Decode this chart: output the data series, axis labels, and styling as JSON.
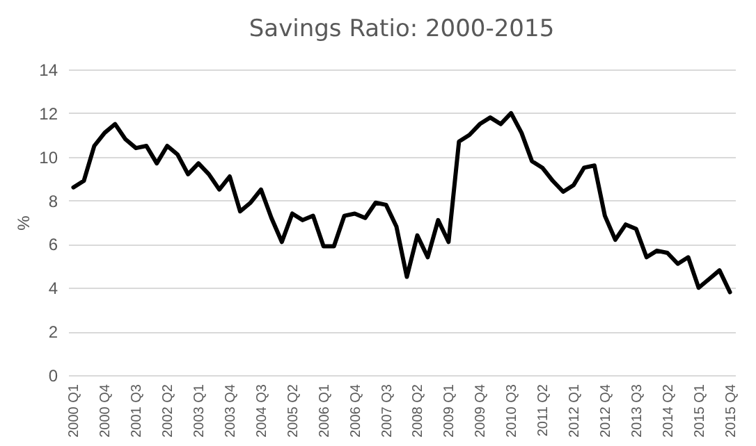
{
  "chart_data": {
    "type": "line",
    "title": "Savings Ratio: 2000-2015",
    "ylabel": "%",
    "categories": [
      "2000 Q1",
      null,
      null,
      "2000 Q4",
      null,
      null,
      "2001 Q3",
      null,
      null,
      "2002 Q2",
      null,
      null,
      "2003 Q1",
      null,
      null,
      "2003 Q4",
      null,
      null,
      "2004 Q3",
      null,
      null,
      "2005 Q2",
      null,
      null,
      "2006 Q1",
      null,
      null,
      "2006 Q4",
      null,
      null,
      "2007 Q3",
      null,
      null,
      "2008 Q2",
      null,
      null,
      "2009 Q1",
      null,
      null,
      "2009 Q4",
      null,
      null,
      "2010 Q3",
      null,
      null,
      "2011 Q2",
      null,
      null,
      "2012 Q1",
      null,
      null,
      "2012 Q4",
      null,
      null,
      "2013 Q3",
      null,
      null,
      "2014 Q2",
      null,
      null,
      "2015 Q1",
      null,
      null,
      "2015 Q4"
    ],
    "series": [
      {
        "color": "#000000",
        "values": [
          8.6,
          8.9,
          10.5,
          11.1,
          11.5,
          10.8,
          10.4,
          10.5,
          9.7,
          10.5,
          10.1,
          9.2,
          9.7,
          9.2,
          8.5,
          9.1,
          7.5,
          7.9,
          8.5,
          7.2,
          6.1,
          7.4,
          7.1,
          7.3,
          5.9,
          5.9,
          7.3,
          7.4,
          7.2,
          7.9,
          7.8,
          6.8,
          4.5,
          6.4,
          5.4,
          7.1,
          6.1,
          10.7,
          11.0,
          11.5,
          11.8,
          11.5,
          12.0,
          11.1,
          9.8,
          9.5,
          8.9,
          8.4,
          8.7,
          9.5,
          9.6,
          7.3,
          6.2,
          6.9,
          6.7,
          5.4,
          5.7,
          5.6,
          5.1,
          5.4,
          4.0,
          4.4,
          4.8,
          3.8
        ]
      }
    ],
    "ylim": [
      0,
      14
    ],
    "yticks": [
      0,
      2,
      4,
      6,
      8,
      10,
      12,
      14
    ],
    "grid": "y"
  }
}
